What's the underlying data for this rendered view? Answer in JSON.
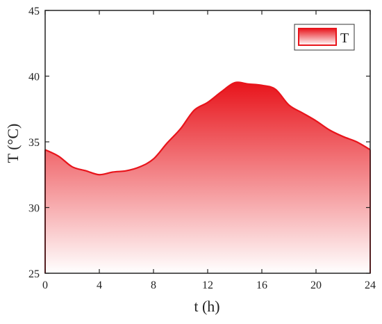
{
  "chart_data": {
    "type": "area",
    "xlabel": "t (h)",
    "ylabel": "T (°C)",
    "xlim": [
      0,
      24
    ],
    "ylim": [
      25,
      45
    ],
    "x_ticks": [
      0,
      4,
      8,
      12,
      16,
      20,
      24
    ],
    "y_ticks": [
      25,
      30,
      35,
      40,
      45
    ],
    "x_tick_labels": [
      "0",
      "4",
      "8",
      "12",
      "16",
      "20",
      "24"
    ],
    "y_tick_labels": [
      "25",
      "30",
      "35",
      "40",
      "45"
    ],
    "grid": false,
    "legend_position": "top-right",
    "series": [
      {
        "name": "T",
        "color": "#e8141b",
        "x": [
          0,
          1,
          2,
          3,
          4,
          5,
          6,
          7,
          8,
          9,
          10,
          11,
          12,
          13,
          14,
          15,
          16,
          17,
          18,
          19,
          20,
          21,
          22,
          23,
          24
        ],
        "y": [
          34.4,
          33.9,
          33.1,
          32.8,
          32.5,
          32.7,
          32.8,
          33.1,
          33.7,
          34.9,
          36.0,
          37.4,
          38.0,
          38.8,
          39.5,
          39.4,
          39.3,
          39.0,
          37.8,
          37.2,
          36.6,
          35.9,
          35.4,
          35.0,
          34.4
        ]
      }
    ]
  }
}
